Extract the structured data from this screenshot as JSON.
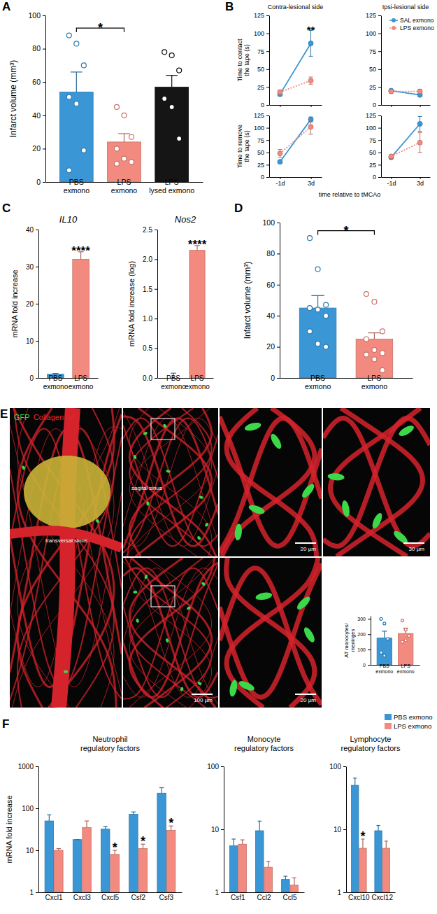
{
  "chart_data": [
    {
      "type": "bar",
      "panel": "A",
      "y_label": "Infarct volume (mm³)",
      "categories": [
        "PBS exmono",
        "LPS exmono",
        "LPS lysed exmono"
      ],
      "values": [
        54,
        24,
        57
      ],
      "errors": [
        12,
        5,
        7
      ],
      "colors": [
        "#3a96d4",
        "#f28a7f",
        "#151515"
      ],
      "points": [
        [
          88,
          83,
          70,
          51,
          47,
          19,
          7
        ],
        [
          45,
          40,
          27,
          20,
          14,
          12,
          11
        ],
        [
          78,
          76,
          67,
          50,
          45,
          26
        ]
      ],
      "ylim": [
        0,
        100
      ],
      "yticks": [
        0,
        20,
        40,
        60,
        80,
        100
      ],
      "annotations": [
        {
          "text": "*",
          "between": [
            0,
            1
          ]
        }
      ]
    },
    {
      "type": "line",
      "panel": "B",
      "title": "Contra-lesional side",
      "y_label": [
        "Time to contact",
        "the tape (s)"
      ],
      "categories": [
        "-1d",
        "3d"
      ],
      "tick_labels": "y",
      "series": [
        {
          "color": "#3a96d4",
          "marker": "circle",
          "line_style": "solid",
          "values": [
            15,
            86
          ],
          "errors": [
            2,
            18
          ]
        },
        {
          "color": "#f28a7f",
          "marker": "circle",
          "line_style": "dotted",
          "values": [
            18,
            34
          ],
          "errors": [
            3,
            5
          ]
        }
      ],
      "ylim": [
        0,
        125
      ],
      "yticks": [
        0,
        25,
        50,
        75,
        100,
        125
      ],
      "annotations": [
        {
          "text": "**",
          "index": 1
        }
      ]
    },
    {
      "type": "line",
      "title": "Ipsi-lesional side",
      "categories": [
        "-1d",
        "3d"
      ],
      "tick_labels": "y",
      "legend": "top-right",
      "series": [
        {
          "name": "SAL exmono",
          "color": "#3a96d4",
          "marker": "circle",
          "line_style": "solid",
          "values": [
            20,
            14
          ],
          "errors": [
            2,
            2
          ]
        },
        {
          "name": "LPS exmono",
          "color": "#f28a7f",
          "marker": "circle",
          "line_style": "dotted",
          "values": [
            19,
            19
          ],
          "errors": [
            3,
            3
          ]
        }
      ],
      "ylim": [
        0,
        125
      ],
      "yticks": [
        0,
        25,
        50,
        75,
        100,
        125
      ]
    },
    {
      "type": "line",
      "y_label": [
        "Time to remove",
        "the tape (s)"
      ],
      "x_label": "time relative to tMCAo",
      "categories": [
        "-1d",
        "3d"
      ],
      "series": [
        {
          "color": "#3a96d4",
          "marker": "circle",
          "line_style": "solid",
          "values": [
            31,
            117
          ],
          "errors": [
            3,
            5
          ]
        },
        {
          "color": "#f28a7f",
          "marker": "circle",
          "line_style": "dotted",
          "values": [
            48,
            102
          ],
          "errors": [
            8,
            15
          ]
        }
      ],
      "ylim": [
        0,
        125
      ],
      "yticks": [
        0,
        25,
        50,
        75,
        100,
        125
      ]
    },
    {
      "type": "line",
      "categories": [
        "-1d",
        "3d"
      ],
      "series": [
        {
          "color": "#3a96d4",
          "marker": "circle",
          "line_style": "solid",
          "values": [
            40,
            108
          ],
          "errors": [
            3,
            15
          ]
        },
        {
          "color": "#f28a7f",
          "marker": "circle",
          "line_style": "dotted",
          "values": [
            42,
            70
          ],
          "errors": [
            3,
            20
          ]
        }
      ],
      "ylim": [
        0,
        125
      ],
      "yticks": [
        0,
        25,
        50,
        75,
        100,
        125
      ]
    },
    {
      "type": "bar",
      "panel": "C",
      "title": "IL10",
      "y_label": "mRNA fold increase",
      "categories": [
        "PBS exmono",
        "LPS exmono"
      ],
      "values": [
        1,
        32
      ],
      "errors": [
        0.2,
        2
      ],
      "colors": [
        "#3a96d4",
        "#f28a7f"
      ],
      "ylim": [
        0,
        40
      ],
      "yticks": [
        0,
        10,
        20,
        30,
        40
      ],
      "annotations": [
        {
          "text": "****",
          "index": 1
        }
      ]
    },
    {
      "type": "bar",
      "title": "Nos2",
      "y_label": "mRNA fold increase (log)",
      "categories": [
        "PBS exmono",
        "LPS exmono"
      ],
      "values": [
        0,
        2.15
      ],
      "errors": [
        0.08,
        0.08
      ],
      "colors": [
        "#3a96d4",
        "#f28a7f"
      ],
      "ylim": [
        0,
        2.5
      ],
      "yticks": [
        {
          "value": 0,
          "label": "0.0"
        },
        0.5,
        {
          "value": 1,
          "label": "1.0"
        },
        1.5,
        {
          "value": 2,
          "label": "2.0"
        },
        2.5
      ],
      "annotations": [
        {
          "text": "****",
          "index": 1
        }
      ]
    },
    {
      "type": "bar",
      "panel": "D",
      "y_label": "Infarct volume (mm³)",
      "categories": [
        "PBS exmono",
        "LPS exmono"
      ],
      "values": [
        45,
        25
      ],
      "errors": [
        8,
        4
      ],
      "colors": [
        "#3a96d4",
        "#f28a7f"
      ],
      "points": [
        [
          90,
          70,
          47,
          45,
          44,
          40,
          30,
          22,
          20
        ],
        [
          54,
          49,
          30,
          25,
          18,
          16,
          15,
          12,
          5
        ]
      ],
      "ylim": [
        0,
        100
      ],
      "yticks": [
        0,
        20,
        40,
        60,
        80,
        100
      ],
      "annotations": [
        {
          "text": "*",
          "between": [
            0,
            1
          ]
        }
      ]
    },
    {
      "type": "bar",
      "y_label": [
        "AT monocytes/",
        "meninges"
      ],
      "categories": [
        "PBS exmono",
        "LPS exmono"
      ],
      "values": [
        175,
        205
      ],
      "errors": [
        45,
        35
      ],
      "colors": [
        "#3a96d4",
        "#f28a7f"
      ],
      "points": [
        [
          300,
          270,
          170,
          80,
          60
        ],
        [
          290,
          230,
          190,
          150,
          160
        ]
      ],
      "ylim": [
        0,
        320
      ],
      "yticks": [
        0,
        100,
        200,
        300
      ]
    },
    {
      "type": "bar",
      "panel": "F",
      "title": "Neutrophil regulatory factors",
      "y_label": "mRNA fold increase",
      "log": "y",
      "categories": [
        "Cxcl1",
        "Cxcl3",
        "Cxcl5",
        "Csf2",
        "Csf3"
      ],
      "series": [
        {
          "color": "#3a96d4",
          "values": [
            50,
            18,
            32,
            72,
            230
          ],
          "errors": [
            20,
            0,
            5,
            10,
            80
          ]
        },
        {
          "color": "#f28a7f",
          "values": [
            10,
            35,
            8,
            11,
            30
          ],
          "errors": [
            1,
            15,
            2,
            3,
            8
          ]
        }
      ],
      "ylim": [
        1,
        1000
      ],
      "yticks": [
        1,
        10,
        100,
        1000
      ],
      "annotations": [
        {
          "text": "*",
          "index": 2,
          "series": 1
        },
        {
          "text": "*",
          "index": 3,
          "series": 1
        },
        {
          "text": "*",
          "index": 4,
          "series": 1
        }
      ]
    },
    {
      "type": "bar",
      "title": "Monocyte regulatory factors",
      "log": "y",
      "categories": [
        "Csf1",
        "Ccl2",
        "Ccl5"
      ],
      "series": [
        {
          "color": "#3a96d4",
          "values": [
            5.5,
            9.5,
            1.6
          ],
          "errors": [
            1.5,
            4,
            0.2
          ]
        },
        {
          "color": "#f28a7f",
          "values": [
            5.8,
            2.5,
            1.3
          ],
          "errors": [
            1,
            0.6,
            0.4
          ]
        }
      ],
      "ylim": [
        1,
        100
      ],
      "yticks": [
        1,
        10,
        100
      ]
    },
    {
      "type": "bar",
      "title": "Lymphocyte regulatory factors",
      "log": "y",
      "legend": "top-right",
      "categories": [
        "Cxcl10",
        "Cxcl12"
      ],
      "series": [
        {
          "name": "PBS exmono",
          "color": "#3a96d4",
          "values": [
            50,
            9.5
          ],
          "errors": [
            15,
            2
          ]
        },
        {
          "name": "LPS exmono",
          "color": "#f28a7f",
          "values": [
            5,
            5
          ],
          "errors": [
            2,
            1.5
          ]
        }
      ],
      "ylim": [
        1,
        100
      ],
      "yticks": [
        1,
        10,
        100
      ],
      "annotations": [
        {
          "text": "*",
          "index": 0,
          "series": 1
        }
      ]
    }
  ],
  "image_panel": {
    "panel": "E",
    "channels": [
      {
        "text": "GFP",
        "color": "#3cd84a"
      },
      {
        "text": "Collagen IV",
        "color": "#e8262a"
      }
    ],
    "labels": [
      "sagital sinus",
      "transversal sinus"
    ],
    "scale_bars": [
      "100 µm",
      "20 µm",
      "30 µm",
      "20 µm"
    ]
  }
}
